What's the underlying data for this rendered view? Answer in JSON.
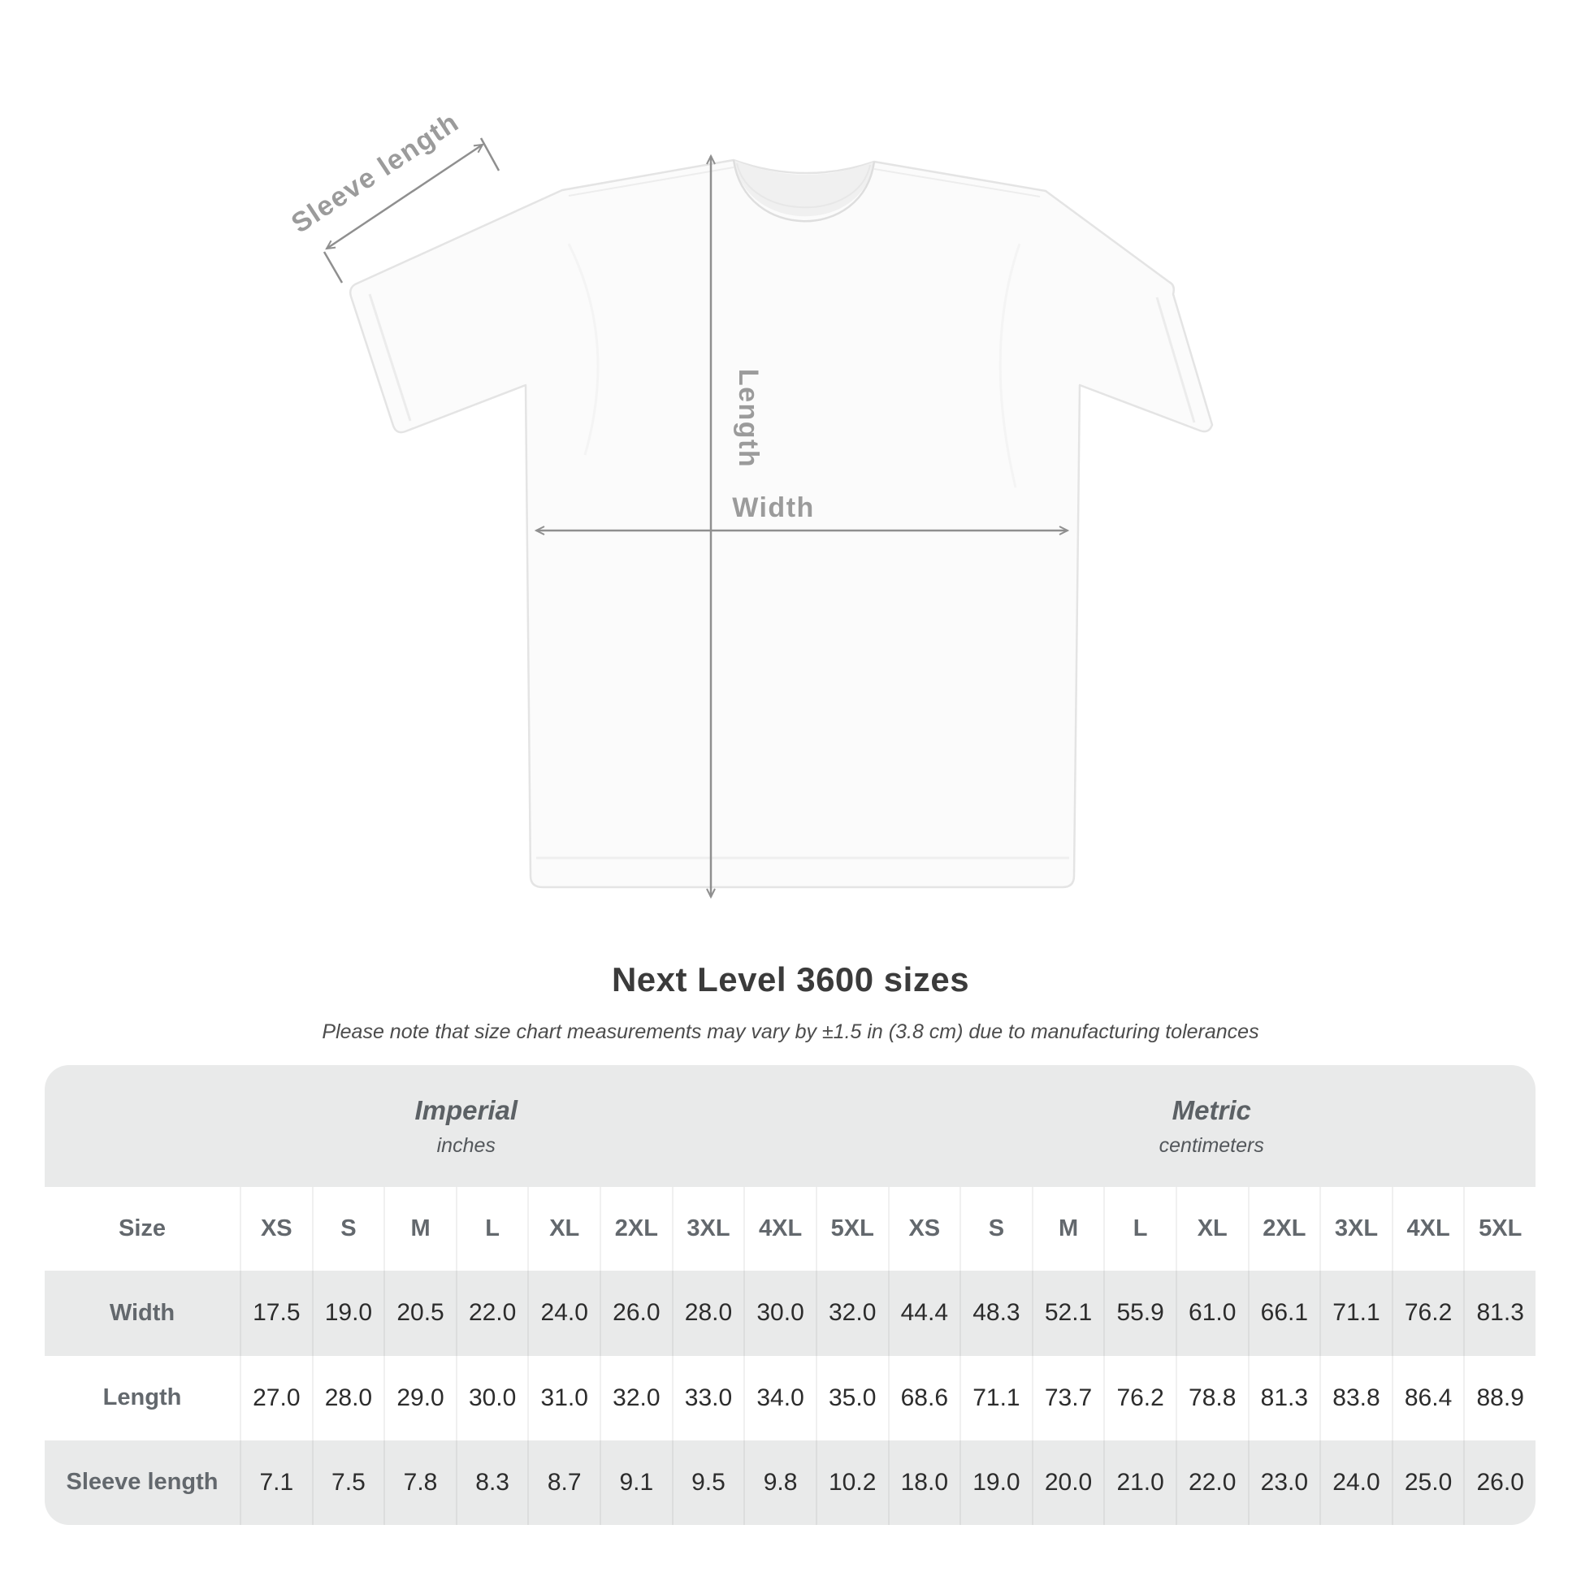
{
  "diagram": {
    "sleeve_length_label": "Sleeve length",
    "length_label": "Length",
    "width_label": "Width"
  },
  "title": "Next Level 3600 sizes",
  "note": "Please note that size chart measurements may vary by ±1.5 in (3.8 cm) due to manufacturing tolerances",
  "chart_data": {
    "type": "table",
    "title": "Next Level 3600 sizes",
    "note": "Please note that size chart measurements may vary by ±1.5 in (3.8 cm) due to manufacturing tolerances",
    "corner_header": "Size",
    "section_headers": [
      {
        "label": "Imperial",
        "unit": "inches"
      },
      {
        "label": "Metric",
        "unit": "centimeters"
      }
    ],
    "sizes": [
      "XS",
      "S",
      "M",
      "L",
      "XL",
      "2XL",
      "3XL",
      "4XL",
      "5XL"
    ],
    "rows": [
      {
        "label": "Width",
        "imperial": [
          17.5,
          19.0,
          20.5,
          22.0,
          24.0,
          26.0,
          28.0,
          30.0,
          32.0
        ],
        "metric": [
          44.4,
          48.3,
          52.1,
          55.9,
          61.0,
          66.1,
          71.1,
          76.2,
          81.3
        ]
      },
      {
        "label": "Length",
        "imperial": [
          27.0,
          28.0,
          29.0,
          30.0,
          31.0,
          32.0,
          33.0,
          34.0,
          35.0
        ],
        "metric": [
          68.6,
          71.1,
          73.7,
          76.2,
          78.8,
          81.3,
          83.8,
          86.4,
          88.9
        ]
      },
      {
        "label": "Sleeve length",
        "imperial": [
          7.1,
          7.5,
          7.8,
          8.3,
          8.7,
          9.1,
          9.5,
          9.8,
          10.2
        ],
        "metric": [
          18.0,
          19.0,
          20.0,
          21.0,
          22.0,
          23.0,
          24.0,
          25.0,
          26.0
        ]
      }
    ]
  },
  "colors": {
    "table_bg": "#e9eaea",
    "row_white": "#ffffff",
    "data_text": "#2c2c2c",
    "label_text": "#63686d",
    "section_text": "#5c6165",
    "title_text": "#3b3b3b",
    "diagram_label": "#9b9b9b",
    "arrow": "#8f8f8f",
    "shirt_fill": "#fbfbfb",
    "shirt_outline": "#e4e4e4"
  }
}
